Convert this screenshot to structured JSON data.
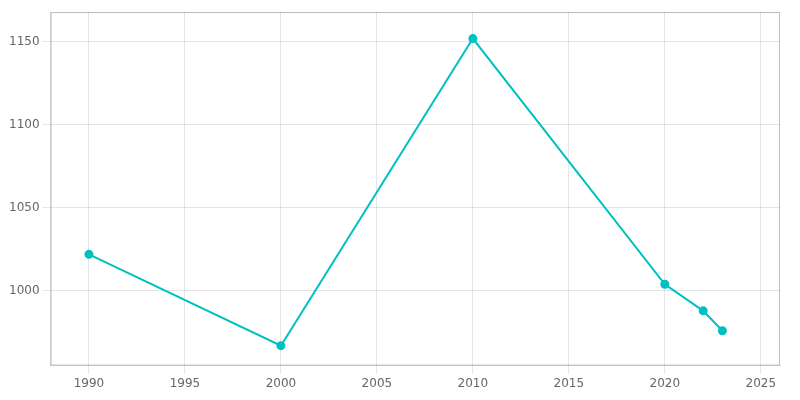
{
  "chart_data": {
    "type": "line",
    "x": [
      1990,
      2000,
      2010,
      2020,
      2022,
      2023
    ],
    "values": [
      1022,
      967,
      1152,
      1004,
      988,
      976
    ],
    "color": "#00c0c0",
    "marker": "circle",
    "xlim": [
      1988,
      2026
    ],
    "ylim": [
      955,
      1168
    ],
    "xticks": [
      1990,
      1995,
      2000,
      2005,
      2010,
      2015,
      2020,
      2025
    ],
    "yticks": [
      1000,
      1050,
      1100,
      1150
    ],
    "grid": true
  }
}
